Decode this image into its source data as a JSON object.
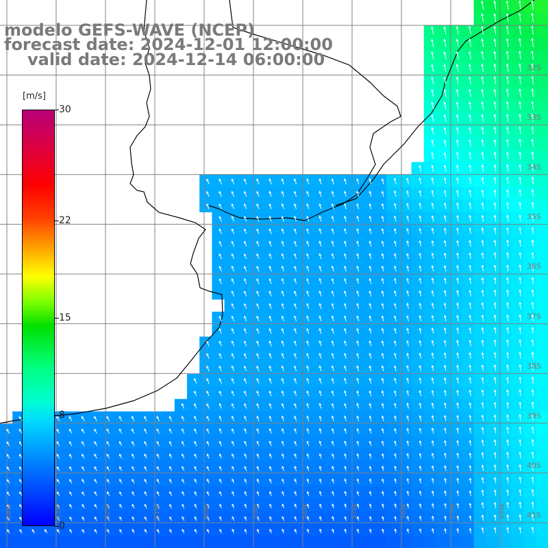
{
  "title": {
    "line1": "modelo GEFS-WAVE (NCEP)",
    "line2": "forecast date: 2024-12-01 12:00:00",
    "line3": "valid date: 2024-12-14 06:00:00"
  },
  "colorbar": {
    "units": "[m/s]",
    "ticks": [
      {
        "label": "30",
        "value": 30
      },
      {
        "label": "22",
        "value": 22
      },
      {
        "label": "15",
        "value": 15
      },
      {
        "label": "8",
        "value": 8
      },
      {
        "label": "0",
        "value": 0
      }
    ]
  },
  "lat_labels": [
    "32S",
    "33S",
    "34S",
    "35S",
    "36S",
    "37S",
    "38S",
    "39S",
    "40S",
    "41S"
  ],
  "lon_labels": [
    "64W",
    "63W",
    "62W",
    "61W",
    "60W",
    "59W",
    "58W",
    "57W",
    "56W",
    "55W",
    "54W"
  ],
  "colors": {
    "grid": "#808080",
    "coast": "#000000",
    "arrow": "#ffffff",
    "label": "#7a7a7a"
  }
}
